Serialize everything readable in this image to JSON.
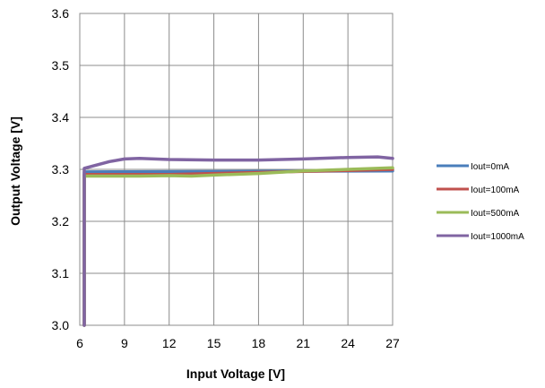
{
  "chart_data": {
    "type": "line",
    "title": "",
    "xlabel": "Input Voltage [V]",
    "ylabel": "Output Voltage [V]",
    "xlim": [
      6,
      27
    ],
    "ylim": [
      3.0,
      3.6
    ],
    "xticks": [
      "6",
      "9",
      "12",
      "15",
      "18",
      "21",
      "24",
      "27"
    ],
    "yticks": [
      "3.0",
      "3.1",
      "3.2",
      "3.3",
      "3.4",
      "3.5",
      "3.6"
    ],
    "grid": true,
    "legend_position": "right",
    "series": [
      {
        "name": "Iout=0mA",
        "color": "#4a7ebb",
        "x": [
          6.3,
          6.3,
          27
        ],
        "y": [
          3.0,
          3.295,
          3.297
        ]
      },
      {
        "name": "Iout=100mA",
        "color": "#c0504d",
        "x": [
          6.3,
          6.3,
          7,
          9,
          12,
          15,
          18,
          21,
          24,
          27
        ],
        "y": [
          3.0,
          3.29,
          3.29,
          3.29,
          3.29,
          3.292,
          3.294,
          3.296,
          3.298,
          3.3
        ]
      },
      {
        "name": "Iout=500mA",
        "color": "#9bbb59",
        "x": [
          6.3,
          6.3,
          8,
          10,
          12,
          13.5,
          15,
          18,
          21,
          24,
          27
        ],
        "y": [
          3.0,
          3.287,
          3.287,
          3.287,
          3.288,
          3.287,
          3.289,
          3.292,
          3.297,
          3.3,
          3.303
        ]
      },
      {
        "name": "Iout=1000mA",
        "color": "#8064a2",
        "x": [
          6.3,
          6.3,
          8,
          9,
          10,
          12,
          15,
          18,
          21,
          24,
          26,
          27
        ],
        "y": [
          3.0,
          3.302,
          3.315,
          3.32,
          3.321,
          3.319,
          3.318,
          3.318,
          3.32,
          3.323,
          3.324,
          3.321
        ]
      }
    ]
  }
}
